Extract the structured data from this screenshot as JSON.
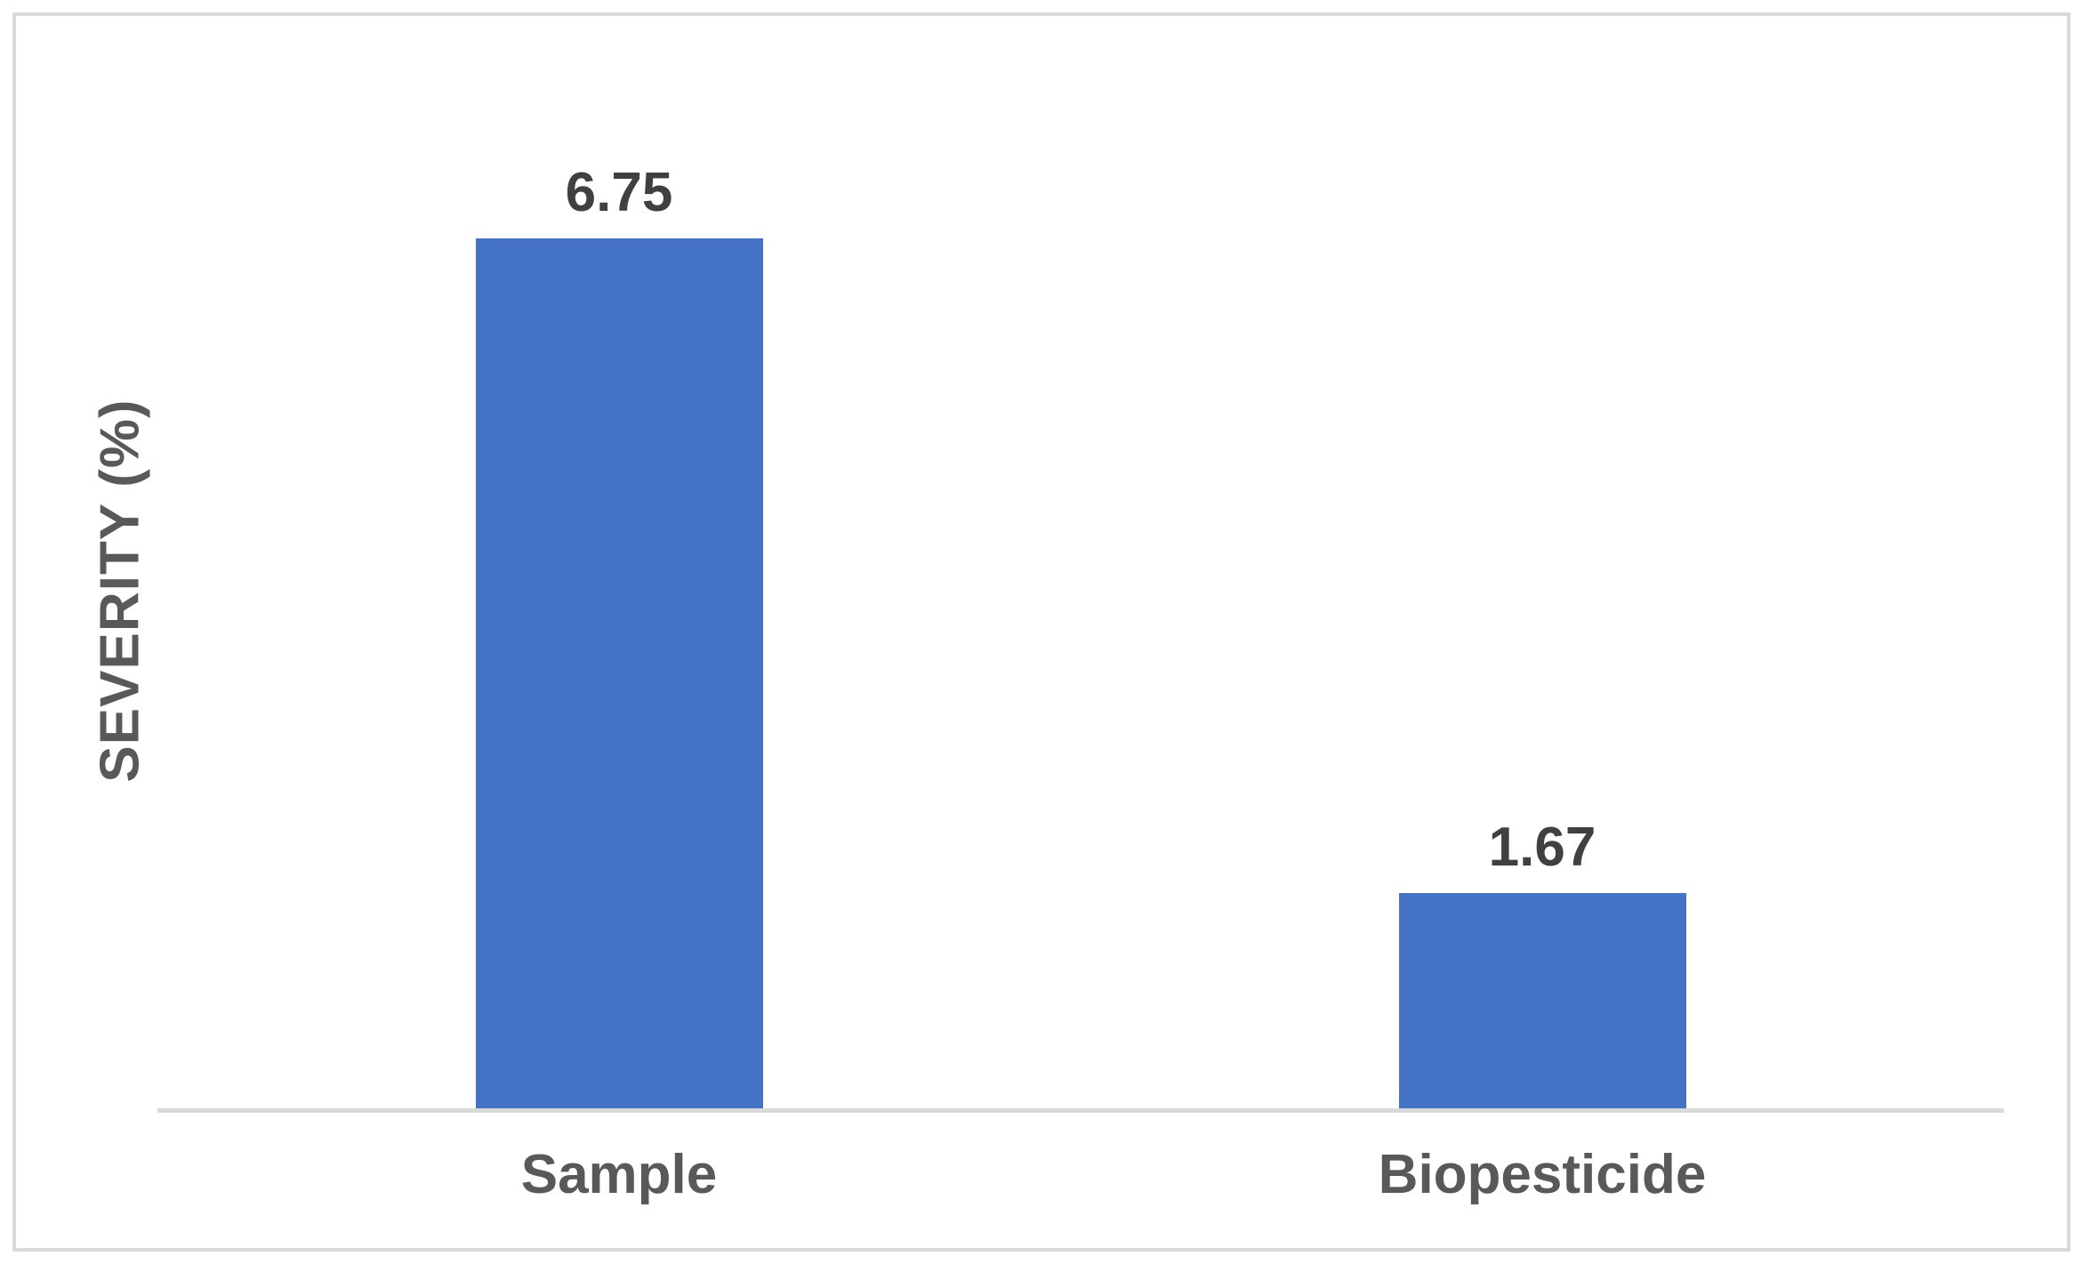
{
  "chart_data": {
    "type": "bar",
    "categories": [
      "Sample",
      "Biopesticide"
    ],
    "values": [
      6.75,
      1.67
    ],
    "data_labels": [
      "6.75",
      "1.67"
    ],
    "title": "",
    "xlabel": "",
    "ylabel": "SEVERITY (%)",
    "ylim": [
      0,
      7
    ],
    "grid": false,
    "legend": false,
    "bar_color": "#4472C4"
  },
  "colors": {
    "background": "#FFFFFF",
    "bar": "#4472C4",
    "axis_line": "#D9D9D9",
    "frame_border": "#D9D9D9",
    "value_label": "#404040",
    "category_label": "#595959",
    "axis_title": "#595959"
  }
}
